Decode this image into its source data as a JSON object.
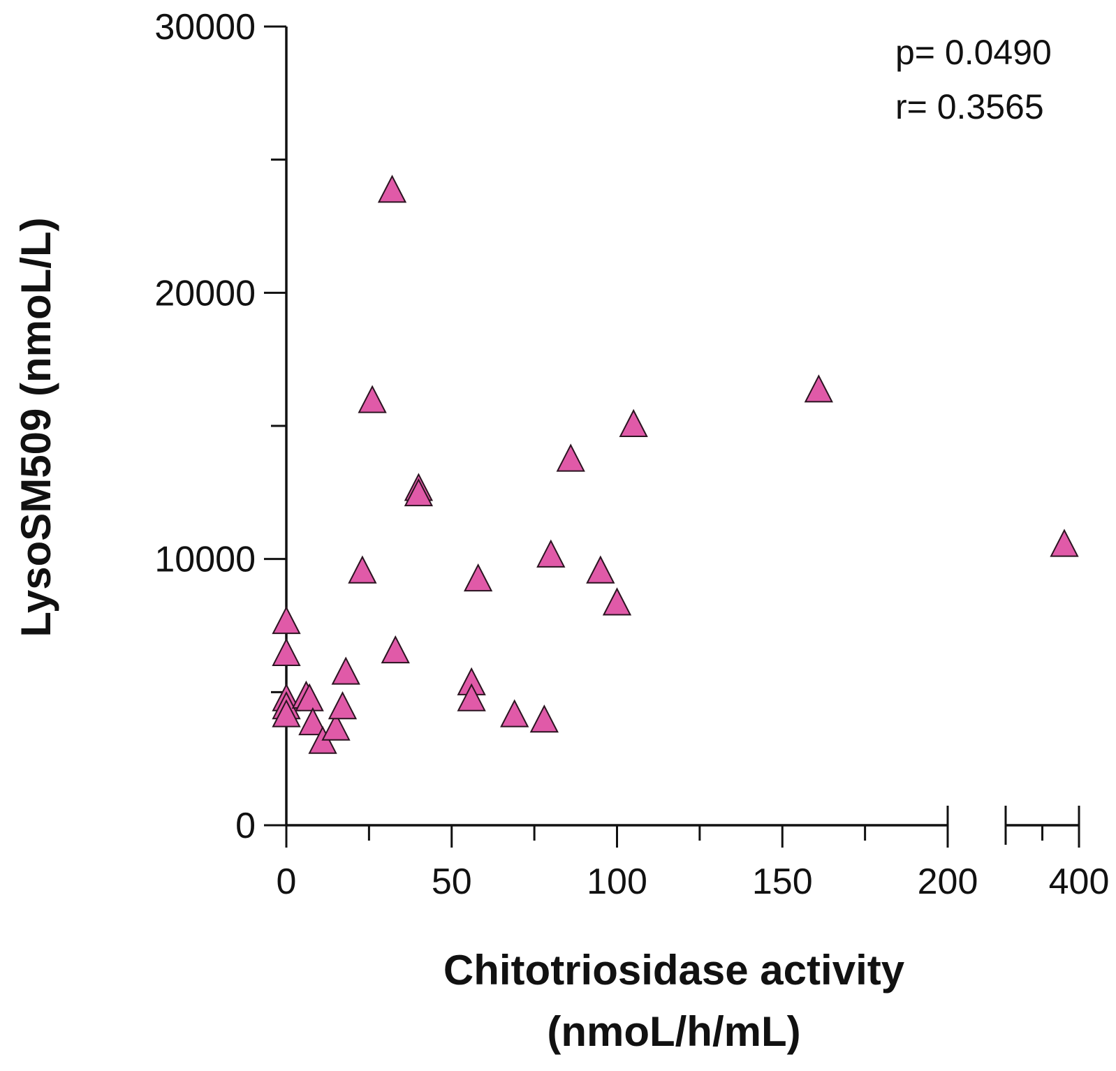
{
  "chart_data": {
    "type": "scatter",
    "title": "",
    "xlabel_line1": "Chitotriosidase activity",
    "xlabel_line2": "(nmoL/h/mL)",
    "ylabel": "LysoSM509 (nmoL/L)",
    "marker": "triangle",
    "marker_color": "#e05aa8",
    "ylim": [
      0,
      30000
    ],
    "y_ticks_major": [
      0,
      10000,
      20000,
      30000
    ],
    "y_tick_labels": [
      "0",
      "10000",
      "20000",
      "30000"
    ],
    "y_ticks_minor": [
      5000,
      15000,
      25000
    ],
    "x_segments": [
      {
        "range": [
          0,
          200
        ],
        "ticks_major": [
          0,
          50,
          100,
          150,
          200
        ],
        "tick_labels": [
          "0",
          "50",
          "100",
          "150",
          "200"
        ],
        "ticks_minor": [
          25,
          75,
          125,
          175
        ]
      },
      {
        "range": [
          360,
          400
        ],
        "ticks_major": [
          400
        ],
        "tick_labels": [
          "400"
        ],
        "ticks_minor": [
          380
        ]
      }
    ],
    "annotations": {
      "p": "p= 0.0490",
      "r": "r= 0.3565"
    },
    "points": [
      {
        "x": 0,
        "y": 7600
      },
      {
        "x": 0,
        "y": 6400
      },
      {
        "x": 0,
        "y": 4700
      },
      {
        "x": 0,
        "y": 4400
      },
      {
        "x": 0,
        "y": 4100
      },
      {
        "x": 6,
        "y": 4800
      },
      {
        "x": 7,
        "y": 4700
      },
      {
        "x": 8,
        "y": 3800
      },
      {
        "x": 11,
        "y": 3100
      },
      {
        "x": 15,
        "y": 3600
      },
      {
        "x": 17,
        "y": 4400
      },
      {
        "x": 18,
        "y": 5700
      },
      {
        "x": 23,
        "y": 9500
      },
      {
        "x": 26,
        "y": 15900
      },
      {
        "x": 32,
        "y": 23800
      },
      {
        "x": 33,
        "y": 6500
      },
      {
        "x": 40,
        "y": 12600
      },
      {
        "x": 40,
        "y": 12400
      },
      {
        "x": 56,
        "y": 5300
      },
      {
        "x": 56,
        "y": 4700
      },
      {
        "x": 58,
        "y": 9200
      },
      {
        "x": 69,
        "y": 4100
      },
      {
        "x": 78,
        "y": 3900
      },
      {
        "x": 80,
        "y": 10100
      },
      {
        "x": 86,
        "y": 13700
      },
      {
        "x": 95,
        "y": 9500
      },
      {
        "x": 100,
        "y": 8300
      },
      {
        "x": 105,
        "y": 15000
      },
      {
        "x": 161,
        "y": 16300
      },
      {
        "x": 392,
        "y": 10500
      }
    ]
  }
}
